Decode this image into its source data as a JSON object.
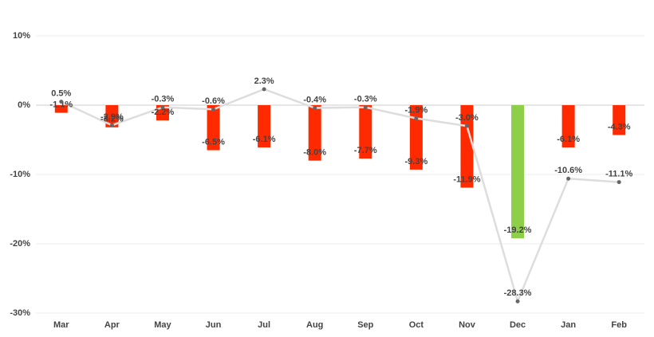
{
  "chart_data": {
    "type": "bar",
    "categories": [
      "Mar",
      "Apr",
      "May",
      "Jun",
      "Jul",
      "Aug",
      "Sep",
      "Oct",
      "Nov",
      "Dec",
      "Jan",
      "Feb"
    ],
    "ylim": [
      -30,
      10
    ],
    "yticks": [
      {
        "value": 10,
        "label": "10%"
      },
      {
        "value": 0,
        "label": "0%"
      },
      {
        "value": -10,
        "label": "-10%"
      },
      {
        "value": -20,
        "label": "-20%"
      },
      {
        "value": -30,
        "label": "-30%"
      }
    ],
    "grid": true,
    "series": [
      {
        "type": "bar",
        "values": [
          -1.1,
          -3.2,
          -2.2,
          -6.5,
          -6.1,
          -8.0,
          -7.7,
          -9.3,
          -11.9,
          -19.2,
          -6.1,
          -4.3
        ],
        "value_labels": [
          "-1.1%",
          "-3.2%",
          "-2.2%",
          "-6.5%",
          "-6.1%",
          "-8.0%",
          "-7.7%",
          "-9.3%",
          "-11.9%",
          "-19.2%",
          "-6.1%",
          "-4.3%"
        ],
        "colors": [
          "#ff2a00",
          "#ff2a00",
          "#ff2a00",
          "#ff2a00",
          "#ff2a00",
          "#ff2a00",
          "#ff2a00",
          "#ff2a00",
          "#ff2a00",
          "#8ecf4a",
          "#ff2a00",
          "#ff2a00"
        ]
      },
      {
        "type": "line",
        "color": "#dddddd",
        "marker_color": "#666666",
        "values": [
          0.5,
          -2.9,
          -0.3,
          -0.6,
          2.3,
          -0.4,
          -0.3,
          -1.9,
          -3.0,
          -28.3,
          -10.6,
          -11.1
        ],
        "value_labels": [
          "0.5%",
          "-2.9%",
          "-0.3%",
          "-0.6%",
          "2.3%",
          "-0.4%",
          "-0.3%",
          "-1.9%",
          "-3.0%",
          "-28.3%",
          "-10.6%",
          "-11.1%"
        ]
      }
    ]
  }
}
